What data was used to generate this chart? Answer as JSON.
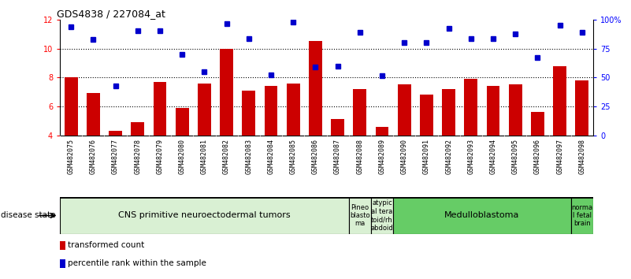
{
  "title": "GDS4838 / 227084_at",
  "samples": [
    "GSM482075",
    "GSM482076",
    "GSM482077",
    "GSM482078",
    "GSM482079",
    "GSM482080",
    "GSM482081",
    "GSM482082",
    "GSM482083",
    "GSM482084",
    "GSM482085",
    "GSM482086",
    "GSM482087",
    "GSM482088",
    "GSM482089",
    "GSM482090",
    "GSM482091",
    "GSM482092",
    "GSM482093",
    "GSM482094",
    "GSM482095",
    "GSM482096",
    "GSM482097",
    "GSM482098"
  ],
  "bar_values": [
    8.0,
    6.9,
    4.3,
    4.9,
    7.7,
    5.9,
    7.6,
    10.0,
    7.1,
    7.4,
    7.6,
    10.5,
    5.1,
    7.2,
    4.6,
    7.5,
    6.8,
    7.2,
    7.9,
    7.4,
    7.5,
    5.6,
    8.8,
    7.8
  ],
  "dot_values": [
    11.5,
    10.6,
    7.4,
    11.2,
    11.2,
    9.6,
    8.4,
    11.7,
    10.7,
    8.2,
    11.8,
    8.7,
    8.8,
    11.1,
    8.1,
    10.4,
    10.4,
    11.4,
    10.7,
    10.7,
    11.0,
    9.4,
    11.6,
    11.1
  ],
  "ylim": [
    4,
    12
  ],
  "yticks": [
    4,
    6,
    8,
    10,
    12
  ],
  "bar_color": "#cc0000",
  "dot_color": "#0000cc",
  "disease_groups": [
    {
      "label": "CNS primitive neuroectodermal tumors",
      "start": 0,
      "end": 13,
      "color": "#d9f0d3",
      "fontsize": 8
    },
    {
      "label": "Pineo\nblasto\nma",
      "start": 13,
      "end": 14,
      "color": "#d9f0d3",
      "fontsize": 6
    },
    {
      "label": "atypic\nal tera\ntoid/rh\nabdoid",
      "start": 14,
      "end": 15,
      "color": "#d9f0d3",
      "fontsize": 6
    },
    {
      "label": "Medulloblastoma",
      "start": 15,
      "end": 23,
      "color": "#66cc66",
      "fontsize": 8
    },
    {
      "label": "norma\nl fetal\nbrain",
      "start": 23,
      "end": 24,
      "color": "#66cc66",
      "fontsize": 6
    }
  ],
  "right_tick_positions": [
    4,
    6,
    8,
    10,
    12
  ],
  "right_tick_labels": [
    "0",
    "25",
    "50",
    "75",
    "100%"
  ],
  "xlabel_disease": "disease state",
  "legend_items": [
    {
      "color": "#cc0000",
      "label": "transformed count"
    },
    {
      "color": "#0000cc",
      "label": "percentile rank within the sample"
    }
  ]
}
